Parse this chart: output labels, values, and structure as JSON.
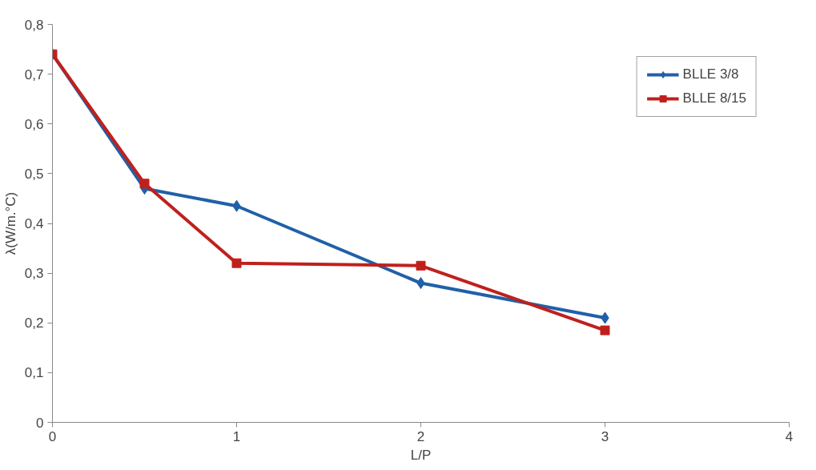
{
  "chart_data": {
    "type": "line",
    "xlabel": "L/P",
    "ylabel": "λ(W/m.°C)",
    "xlim": [
      0,
      4
    ],
    "ylim": [
      0,
      0.8
    ],
    "xticks": [
      0,
      1,
      2,
      3,
      4
    ],
    "yticks": [
      0,
      {
        "value": 0.1,
        "label": "0,1"
      },
      {
        "value": 0.2,
        "label": "0,2"
      },
      {
        "value": 0.3,
        "label": "0,3"
      },
      {
        "value": 0.4,
        "label": "0,4"
      },
      {
        "value": 0.5,
        "label": "0,5"
      },
      {
        "value": 0.6,
        "label": "0,6"
      },
      {
        "value": 0.7,
        "label": "0,7"
      },
      {
        "value": 0.8,
        "label": "0,8"
      }
    ],
    "x": [
      0,
      0.5,
      1,
      2,
      3
    ],
    "series": [
      {
        "name": "BLLE 3/8",
        "color": "#2060a8",
        "marker": "diamond",
        "values": [
          0.74,
          0.47,
          0.435,
          0.28,
          0.21
        ]
      },
      {
        "name": "BLLE 8/15",
        "color": "#c0201c",
        "marker": "square",
        "values": [
          0.74,
          0.48,
          0.32,
          0.315,
          0.185
        ]
      }
    ],
    "grid": false,
    "legend": "top right",
    "line_style": "solid"
  }
}
